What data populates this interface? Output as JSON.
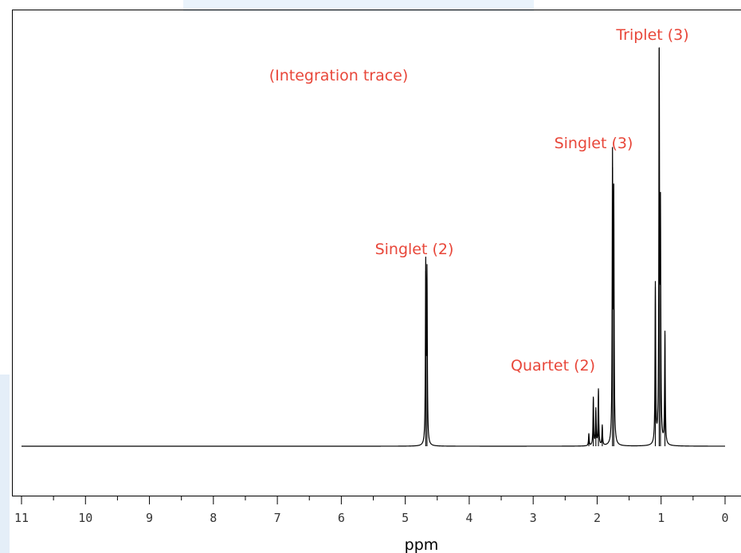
{
  "chart_data": {
    "type": "line",
    "xlabel": "ppm",
    "xlim": [
      11,
      0
    ],
    "x_reversed": true,
    "ylim": [
      0,
      100
    ],
    "x_ticks": [
      "11",
      "10",
      "9",
      "8",
      "7",
      "6",
      "5",
      "4",
      "3",
      "2",
      "1",
      "0"
    ],
    "grid": false,
    "series": [
      {
        "peaks": [
          {
            "ppm": 4.68,
            "height": 44
          },
          {
            "ppm": 4.66,
            "height": 42
          },
          {
            "ppm": 2.13,
            "height": 3
          },
          {
            "ppm": 2.06,
            "height": 12
          },
          {
            "ppm": 2.02,
            "height": 9
          },
          {
            "ppm": 1.98,
            "height": 14
          },
          {
            "ppm": 1.92,
            "height": 5
          },
          {
            "ppm": 1.76,
            "height": 70
          },
          {
            "ppm": 1.74,
            "height": 60
          },
          {
            "ppm": 1.09,
            "height": 40
          },
          {
            "ppm": 1.03,
            "height": 100
          },
          {
            "ppm": 1.01,
            "height": 55
          },
          {
            "ppm": 0.94,
            "height": 28
          }
        ]
      }
    ],
    "annotations": [
      {
        "text": "(Integration trace)"
      },
      {
        "text": "Triplet (3)"
      },
      {
        "text": "Singlet (3)"
      },
      {
        "text": "Singlet (2)"
      },
      {
        "text": "Quartet (2)"
      }
    ],
    "annotation_color": "#e8473a",
    "line_color": "#000000"
  }
}
